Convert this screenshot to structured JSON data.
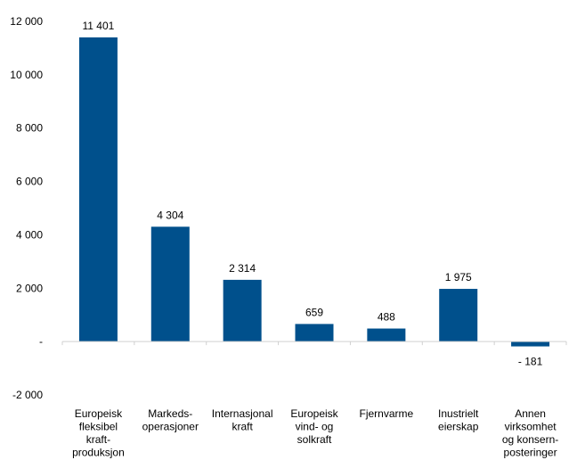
{
  "chart_data": {
    "type": "bar",
    "categories": [
      "Europeisk fleksibel kraft-produksjon",
      "Markeds-operasjoner",
      "Internasjonal kraft",
      "Europeisk vind- og solkraft",
      "Fjernvarme",
      "Inustrielt eierskap",
      "Annen virksomhet og konsern-posteringer"
    ],
    "category_lines": [
      [
        "Europeisk",
        "fleksibel",
        "kraft-",
        "produksjon"
      ],
      [
        "Markeds-",
        "operasjoner"
      ],
      [
        "Internasjonal",
        "kraft"
      ],
      [
        "Europeisk",
        "vind- og",
        "solkraft"
      ],
      [
        "Fjernvarme"
      ],
      [
        "Inustrielt",
        "eierskap"
      ],
      [
        "Annen",
        "virksomhet",
        "og konsern-",
        "posteringer"
      ]
    ],
    "values": [
      11401,
      4304,
      2314,
      659,
      488,
      1975,
      -181
    ],
    "value_labels": [
      "11 401",
      "4 304",
      "2 314",
      "659",
      "488",
      "1 975",
      "- 181"
    ],
    "ylim": [
      -2000,
      12000
    ],
    "yticks": [
      -2000,
      0,
      2000,
      4000,
      6000,
      8000,
      10000,
      12000
    ],
    "ytick_labels": [
      "-2 000",
      "-",
      "2 000",
      "4 000",
      "6 000",
      "8 000",
      "10 000",
      "12 000"
    ],
    "title": "",
    "xlabel": "",
    "ylabel": "",
    "grid": false,
    "legend": "none",
    "bar_color": "#00508C",
    "axis_color": "#D0D0D0"
  }
}
